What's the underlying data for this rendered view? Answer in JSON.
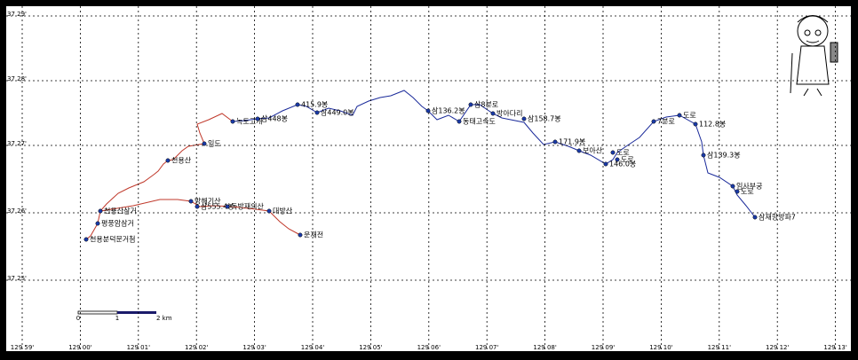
{
  "map": {
    "lat_labels": [
      "37 29'",
      "37 28'",
      "37 27'",
      "37 26'",
      "37 25'"
    ],
    "lon_labels": [
      "129 59'",
      "129 00'",
      "129 01'",
      "129 02'",
      "129 03'",
      "129 04'",
      "129 05'",
      "129 06'",
      "129 07'",
      "129 08'",
      "129 09'",
      "129 10'",
      "129 11'",
      "129 12'",
      "129 13'"
    ],
    "waypoints": [
      "천용분덕문거첨",
      "평풍암삼거",
      "천용산삼거",
      "천용산",
      "임도",
      "방해기산",
      "삼555.4봉",
      "독방재의산",
      "대방산",
      "운재전",
      "녹토고개",
      "삼448봉",
      "415.9봉",
      "삼449.0봉",
      "삼136.2봉",
      "동태고속도",
      "삼8분로",
      "방아다리",
      "삼158.7봉",
      "171.9봉",
      "보아산",
      "도로",
      "도로",
      "146.0봉",
      "7분로",
      "도로",
      "112.8봉",
      "삼139.3봉",
      "임사부궁",
      "도로",
      "삼재향방파7"
    ],
    "scale_labels": [
      "0",
      "1",
      "2 km"
    ]
  }
}
